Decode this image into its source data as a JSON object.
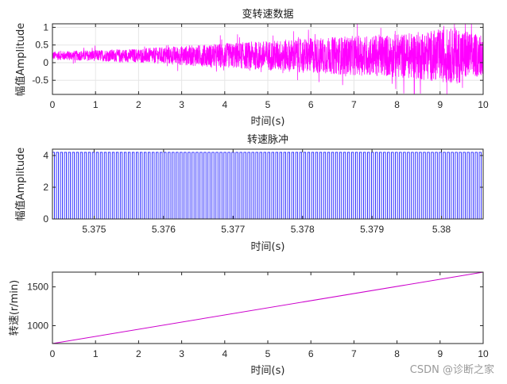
{
  "colors": {
    "signal": "#ff00ff",
    "pulse": "#0000ff",
    "speed": "#cc00cc",
    "axis": "#262626",
    "grid": "#e6e6e6",
    "watermark": "#9a9a9a"
  },
  "watermark": "CSDN @诊断之家",
  "chart_data": [
    {
      "type": "line",
      "title": "变转速数据",
      "xlabel": "时间(s)",
      "ylabel": "幅值Amplitude",
      "xlim": [
        0,
        10
      ],
      "ylim": [
        -0.9,
        1.1
      ],
      "xticks": [
        0,
        1,
        2,
        3,
        4,
        5,
        6,
        7,
        8,
        9,
        10
      ],
      "yticks": [
        -0.5,
        0,
        0.5,
        1
      ],
      "ytick_labels": [
        "-0.5",
        "0",
        "0.5",
        "1"
      ],
      "grid": true,
      "series": [
        {
          "offset": 0.2,
          "amplitude_envelope": {
            "x": [
              0,
              2,
              4,
              6,
              8,
              9.4,
              10
            ],
            "y": [
              0.12,
              0.2,
              0.35,
              0.5,
              0.62,
              0.8,
              0.55
            ]
          }
        }
      ]
    },
    {
      "type": "line",
      "title": "转速脉冲",
      "xlabel": "时间(s)",
      "ylabel": "幅值Amplitude",
      "xlim": [
        5.3744,
        5.3806
      ],
      "ylim": [
        0,
        4.4
      ],
      "xticks": [
        5.375,
        5.376,
        5.377,
        5.378,
        5.379,
        5.38
      ],
      "xtick_labels": [
        "5.375",
        "5.376",
        "5.377",
        "5.378",
        "5.379",
        "5.38"
      ],
      "yticks": [
        0,
        2,
        4
      ],
      "ytick_labels": [
        "0",
        "2",
        "4"
      ],
      "grid": false,
      "series": [
        {
          "waveform": "square",
          "low": 0,
          "high": 4.2,
          "cycles_in_view": 108
        }
      ]
    },
    {
      "type": "line",
      "title": "",
      "xlabel": "时间(s)",
      "ylabel": "转速(r/min)",
      "xlim": [
        0,
        10
      ],
      "ylim": [
        770,
        1690
      ],
      "xticks": [
        0,
        1,
        2,
        3,
        4,
        5,
        6,
        7,
        8,
        9,
        10
      ],
      "yticks": [
        1000,
        1500
      ],
      "ytick_labels": [
        "1000",
        "1500"
      ],
      "grid": false,
      "series": [
        {
          "x": [
            0,
            10
          ],
          "y": [
            770,
            1690
          ]
        }
      ]
    }
  ]
}
